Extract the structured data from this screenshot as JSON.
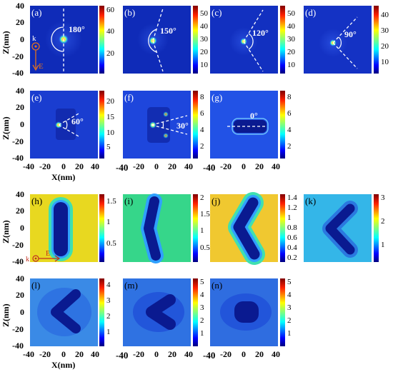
{
  "figure": {
    "x_axis_label": "X(nm)",
    "z_axis_label": "Z(nm)",
    "axis_tick_labels_x": [
      "-40",
      "-20",
      "0",
      "20",
      "40"
    ],
    "axis_tick_labels_z": [
      "40",
      "20",
      "0",
      "-20",
      "-40"
    ],
    "panels_top": [
      {
        "id": "a",
        "label": "(a)",
        "angle_label": "180°",
        "cbar": [
          "60",
          "40",
          "20"
        ],
        "bg": "#0f2bb8"
      },
      {
        "id": "b",
        "label": "(b)",
        "angle_label": "150°",
        "cbar": [
          "50",
          "40",
          "30",
          "20",
          "10"
        ],
        "bg": "#0f2bb8"
      },
      {
        "id": "c",
        "label": "(c)",
        "angle_label": "120°",
        "cbar": [
          "50",
          "40",
          "30",
          "20",
          "10"
        ],
        "bg": "#1230c0"
      },
      {
        "id": "d",
        "label": "(d)",
        "angle_label": "90°",
        "cbar": [
          "40",
          "30",
          "20",
          "10"
        ],
        "bg": "#1432c4"
      },
      {
        "id": "e",
        "label": "(e)",
        "angle_label": "60°",
        "cbar": [
          "20",
          "15",
          "10",
          "5"
        ],
        "bg": "#1a3dd0"
      },
      {
        "id": "f",
        "label": "(f)",
        "angle_label": "30°",
        "cbar": [
          "8",
          "6",
          "4",
          "2"
        ],
        "bg": "#1e46dc"
      },
      {
        "id": "g",
        "label": "(g)",
        "angle_label": "0°",
        "cbar": [
          "8",
          "6",
          "4",
          "2"
        ],
        "bg": "#2252e6"
      }
    ],
    "panels_bottom": [
      {
        "id": "h",
        "label": "(h)",
        "cbar": [
          "1.5",
          "1",
          "0.5"
        ],
        "bg": "#e8d820"
      },
      {
        "id": "i",
        "label": "(i)",
        "cbar": [
          "2",
          "1.5",
          "1",
          "0.5"
        ],
        "bg": "#36d68a"
      },
      {
        "id": "j",
        "label": "(j)",
        "cbar": [
          "1.4",
          "1.2",
          "1",
          "0.8",
          "0.6",
          "0.4",
          "0.2"
        ],
        "bg": "#f0c830"
      },
      {
        "id": "k",
        "label": "(k)",
        "cbar": [
          "3",
          "2",
          "1"
        ],
        "bg": "#34b6e8"
      },
      {
        "id": "l",
        "label": "(l)",
        "cbar": [
          "4",
          "3",
          "2",
          "1"
        ],
        "bg": "#3a8ae6"
      },
      {
        "id": "m",
        "label": "(m)",
        "cbar": [
          "5",
          "4",
          "3",
          "2",
          "1"
        ],
        "bg": "#2f72e2"
      },
      {
        "id": "n",
        "label": "(n)",
        "cbar": [
          "5",
          "4",
          "3",
          "2",
          "1"
        ],
        "bg": "#2f6de0"
      }
    ],
    "legend_top": {
      "k": "k",
      "e": "E"
    },
    "legend_bottom": {
      "k": "k",
      "e": "E"
    },
    "colors": {
      "jet": [
        "#00007f",
        "#0000ff",
        "#007fff",
        "#00ffff",
        "#7fff7f",
        "#ffff00",
        "#ff7f00",
        "#ff0000",
        "#7f0000"
      ],
      "rod_dark": "#0a1a90",
      "arrow": "#e07020"
    }
  }
}
